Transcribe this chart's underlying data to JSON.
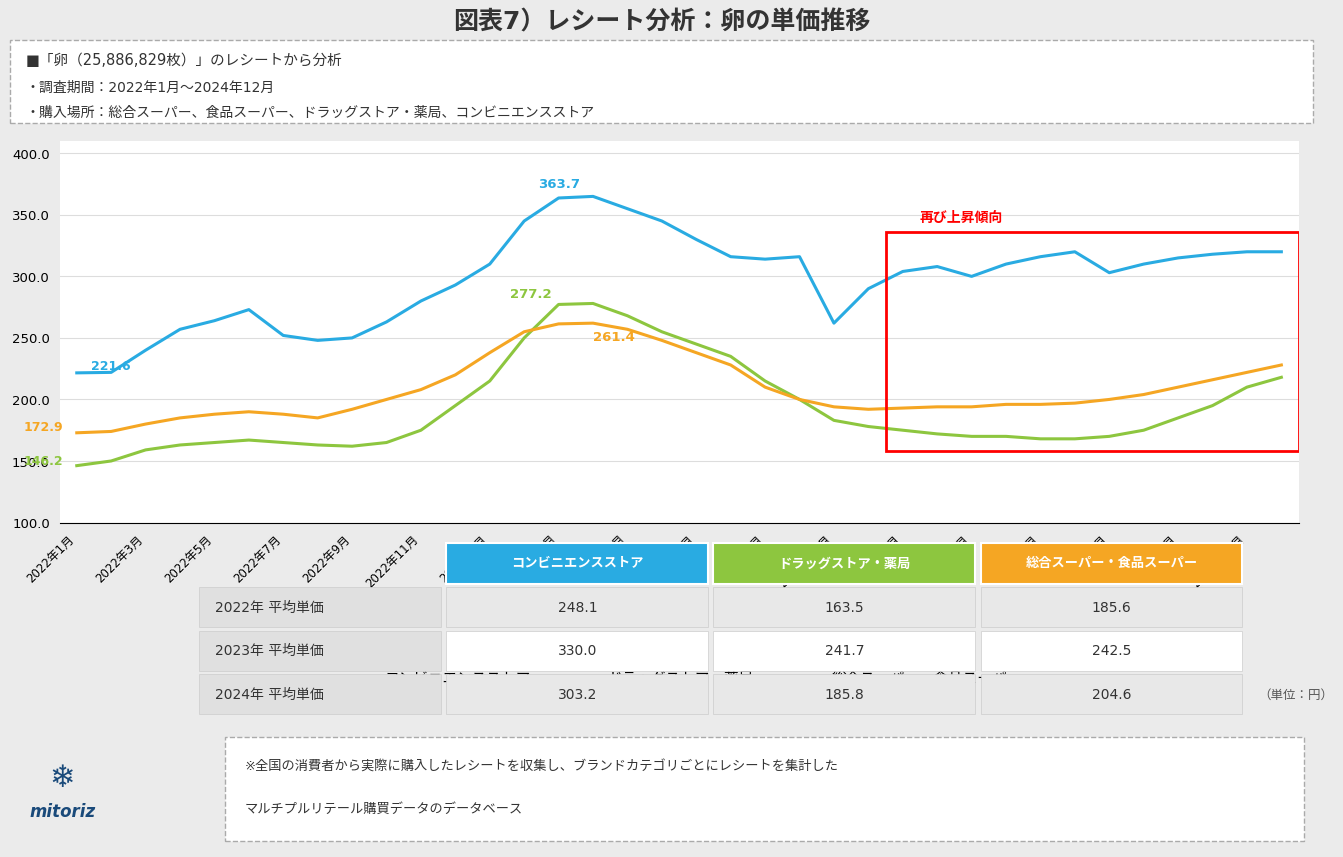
{
  "title": "図表7）レシート分析：卵の単価推移",
  "info_lines": [
    "■「卵（25,886,829枚）」のレシートから分析",
    "・調査期間：2022年1月〜2024年12月",
    "・購入場所：総合スーパー、食品スーパー、ドラッグストア・薬局、コンビニエンスストア"
  ],
  "x_labels": [
    "2022年1月",
    "2022年3月",
    "2022年5月",
    "2022年7月",
    "2022年9月",
    "2022年11月",
    "2023年1月",
    "2023年3月",
    "2023年5月",
    "2023年7月",
    "2023年9月",
    "2023年11月",
    "2024年1月",
    "2024年3月",
    "2024年5月",
    "2024年7月",
    "2024年9月",
    "2024年11月"
  ],
  "conv_data": [
    221.6,
    222.0,
    240.0,
    257.0,
    264.0,
    273.0,
    252.0,
    248.0,
    250.0,
    263.0,
    280.0,
    293.0,
    310.0,
    345.0,
    363.7,
    365.0,
    355.0,
    345.0,
    330.0,
    316.0,
    314.0,
    316.0,
    262.0,
    290.0,
    304.0,
    308.0,
    300.0,
    310.0,
    316.0,
    320.0,
    303.0,
    310.0,
    315.0,
    318.0,
    320.0,
    320.0
  ],
  "drug_data": [
    146.2,
    150.0,
    159.0,
    163.0,
    165.0,
    167.0,
    165.0,
    163.0,
    162.0,
    165.0,
    175.0,
    195.0,
    215.0,
    250.0,
    277.2,
    278.0,
    268.0,
    255.0,
    245.0,
    235.0,
    215.0,
    200.0,
    183.0,
    178.0,
    175.0,
    172.0,
    170.0,
    170.0,
    168.0,
    168.0,
    170.0,
    175.0,
    185.0,
    195.0,
    210.0,
    218.0
  ],
  "supa_data": [
    172.9,
    174.0,
    180.0,
    185.0,
    188.0,
    190.0,
    188.0,
    185.0,
    192.0,
    200.0,
    208.0,
    220.0,
    238.0,
    255.0,
    261.4,
    262.0,
    257.0,
    248.0,
    238.0,
    228.0,
    210.0,
    200.0,
    194.0,
    192.0,
    193.0,
    194.0,
    194.0,
    196.0,
    196.0,
    197.0,
    200.0,
    204.0,
    210.0,
    216.0,
    222.0,
    228.0
  ],
  "conv_color": "#29ABE2",
  "drug_color": "#8DC63F",
  "supa_color": "#F5A623",
  "yticks": [
    100.0,
    150.0,
    200.0,
    250.0,
    300.0,
    350.0,
    400.0
  ],
  "red_box_label": "再び上昇傾向",
  "legend_labels": [
    "コンビニエンスストア",
    "ドラッグストア・薬局",
    "総合スーパー・食品スーパー"
  ],
  "table_col_headers": [
    "コンビニエンスストア",
    "ドラッグストア・薬局",
    "総合スーパー・食品スーパー"
  ],
  "table_row_headers": [
    "2022年 平均単価",
    "2023年 平均単価",
    "2024年 平均単価"
  ],
  "table_values": [
    [
      248.1,
      163.5,
      185.6
    ],
    [
      330.0,
      241.7,
      242.5
    ],
    [
      303.2,
      185.8,
      204.6
    ]
  ],
  "col_header_colors": [
    "#29ABE2",
    "#8DC63F",
    "#F5A623"
  ],
  "unit_text": "（単位：円）",
  "footer_note_line1": "※全国の消費者から実際に購入したレシートを収集し、ブランドカテゴリごとにレシートを集計した",
  "footer_note_line2": "マルチプルリテール購買データのデータベース",
  "mitoriz_label": "mitoriz",
  "bg_color": "#ebebeb",
  "white": "#ffffff",
  "dark_text": "#333333",
  "mid_text": "#555555"
}
